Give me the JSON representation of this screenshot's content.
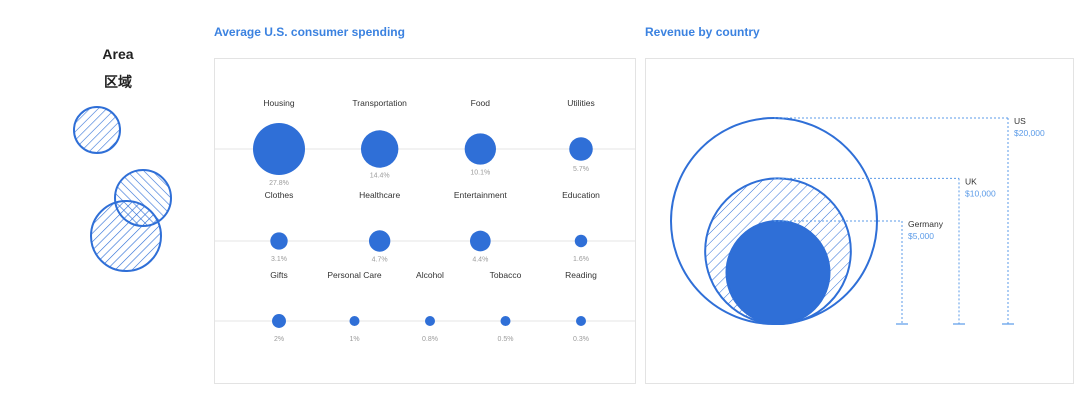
{
  "legend": {
    "line1": "Area",
    "line2": "区域"
  },
  "colors": {
    "accent": "#2f6fd7",
    "axis": "#e6e6e6",
    "label": "#9b9b9b",
    "money": "#5b9be8"
  },
  "chart_data": [
    {
      "type": "bubble-grid",
      "title": "Average U.S. consumer spending",
      "rows": [
        [
          {
            "category": "Housing",
            "label": "27.8%",
            "value": 27.8
          },
          {
            "category": "Transportation",
            "label": "14.4%",
            "value": 14.4
          },
          {
            "category": "Food",
            "label": "10.1%",
            "value": 10.1
          },
          {
            "category": "Utilities",
            "label": "5.7%",
            "value": 5.7
          }
        ],
        [
          {
            "category": "Clothes",
            "label": "3.1%",
            "value": 3.1
          },
          {
            "category": "Healthcare",
            "label": "4.7%",
            "value": 4.7
          },
          {
            "category": "Entertainment",
            "label": "4.4%",
            "value": 4.4
          },
          {
            "category": "Education",
            "label": "1.6%",
            "value": 1.6
          }
        ],
        [
          {
            "category": "Gifts",
            "label": "2%",
            "value": 2
          },
          {
            "category": "Personal Care",
            "label": "1%",
            "value": 1
          },
          {
            "category": "Alcohol",
            "label": "0.8%",
            "value": 0.8
          },
          {
            "category": "Tobacco",
            "label": "0.5%",
            "value": 0.5
          },
          {
            "category": "Reading",
            "label": "0.3%",
            "value": 0.3
          }
        ]
      ]
    },
    {
      "type": "nested-area",
      "title": "Revenue by country",
      "items": [
        {
          "country": "US",
          "label": "$20,000",
          "value": 20000,
          "style": "outline"
        },
        {
          "country": "UK",
          "label": "$10,000",
          "value": 10000,
          "style": "hatched"
        },
        {
          "country": "Germany",
          "label": "$5,000",
          "value": 5000,
          "style": "filled"
        }
      ]
    }
  ]
}
